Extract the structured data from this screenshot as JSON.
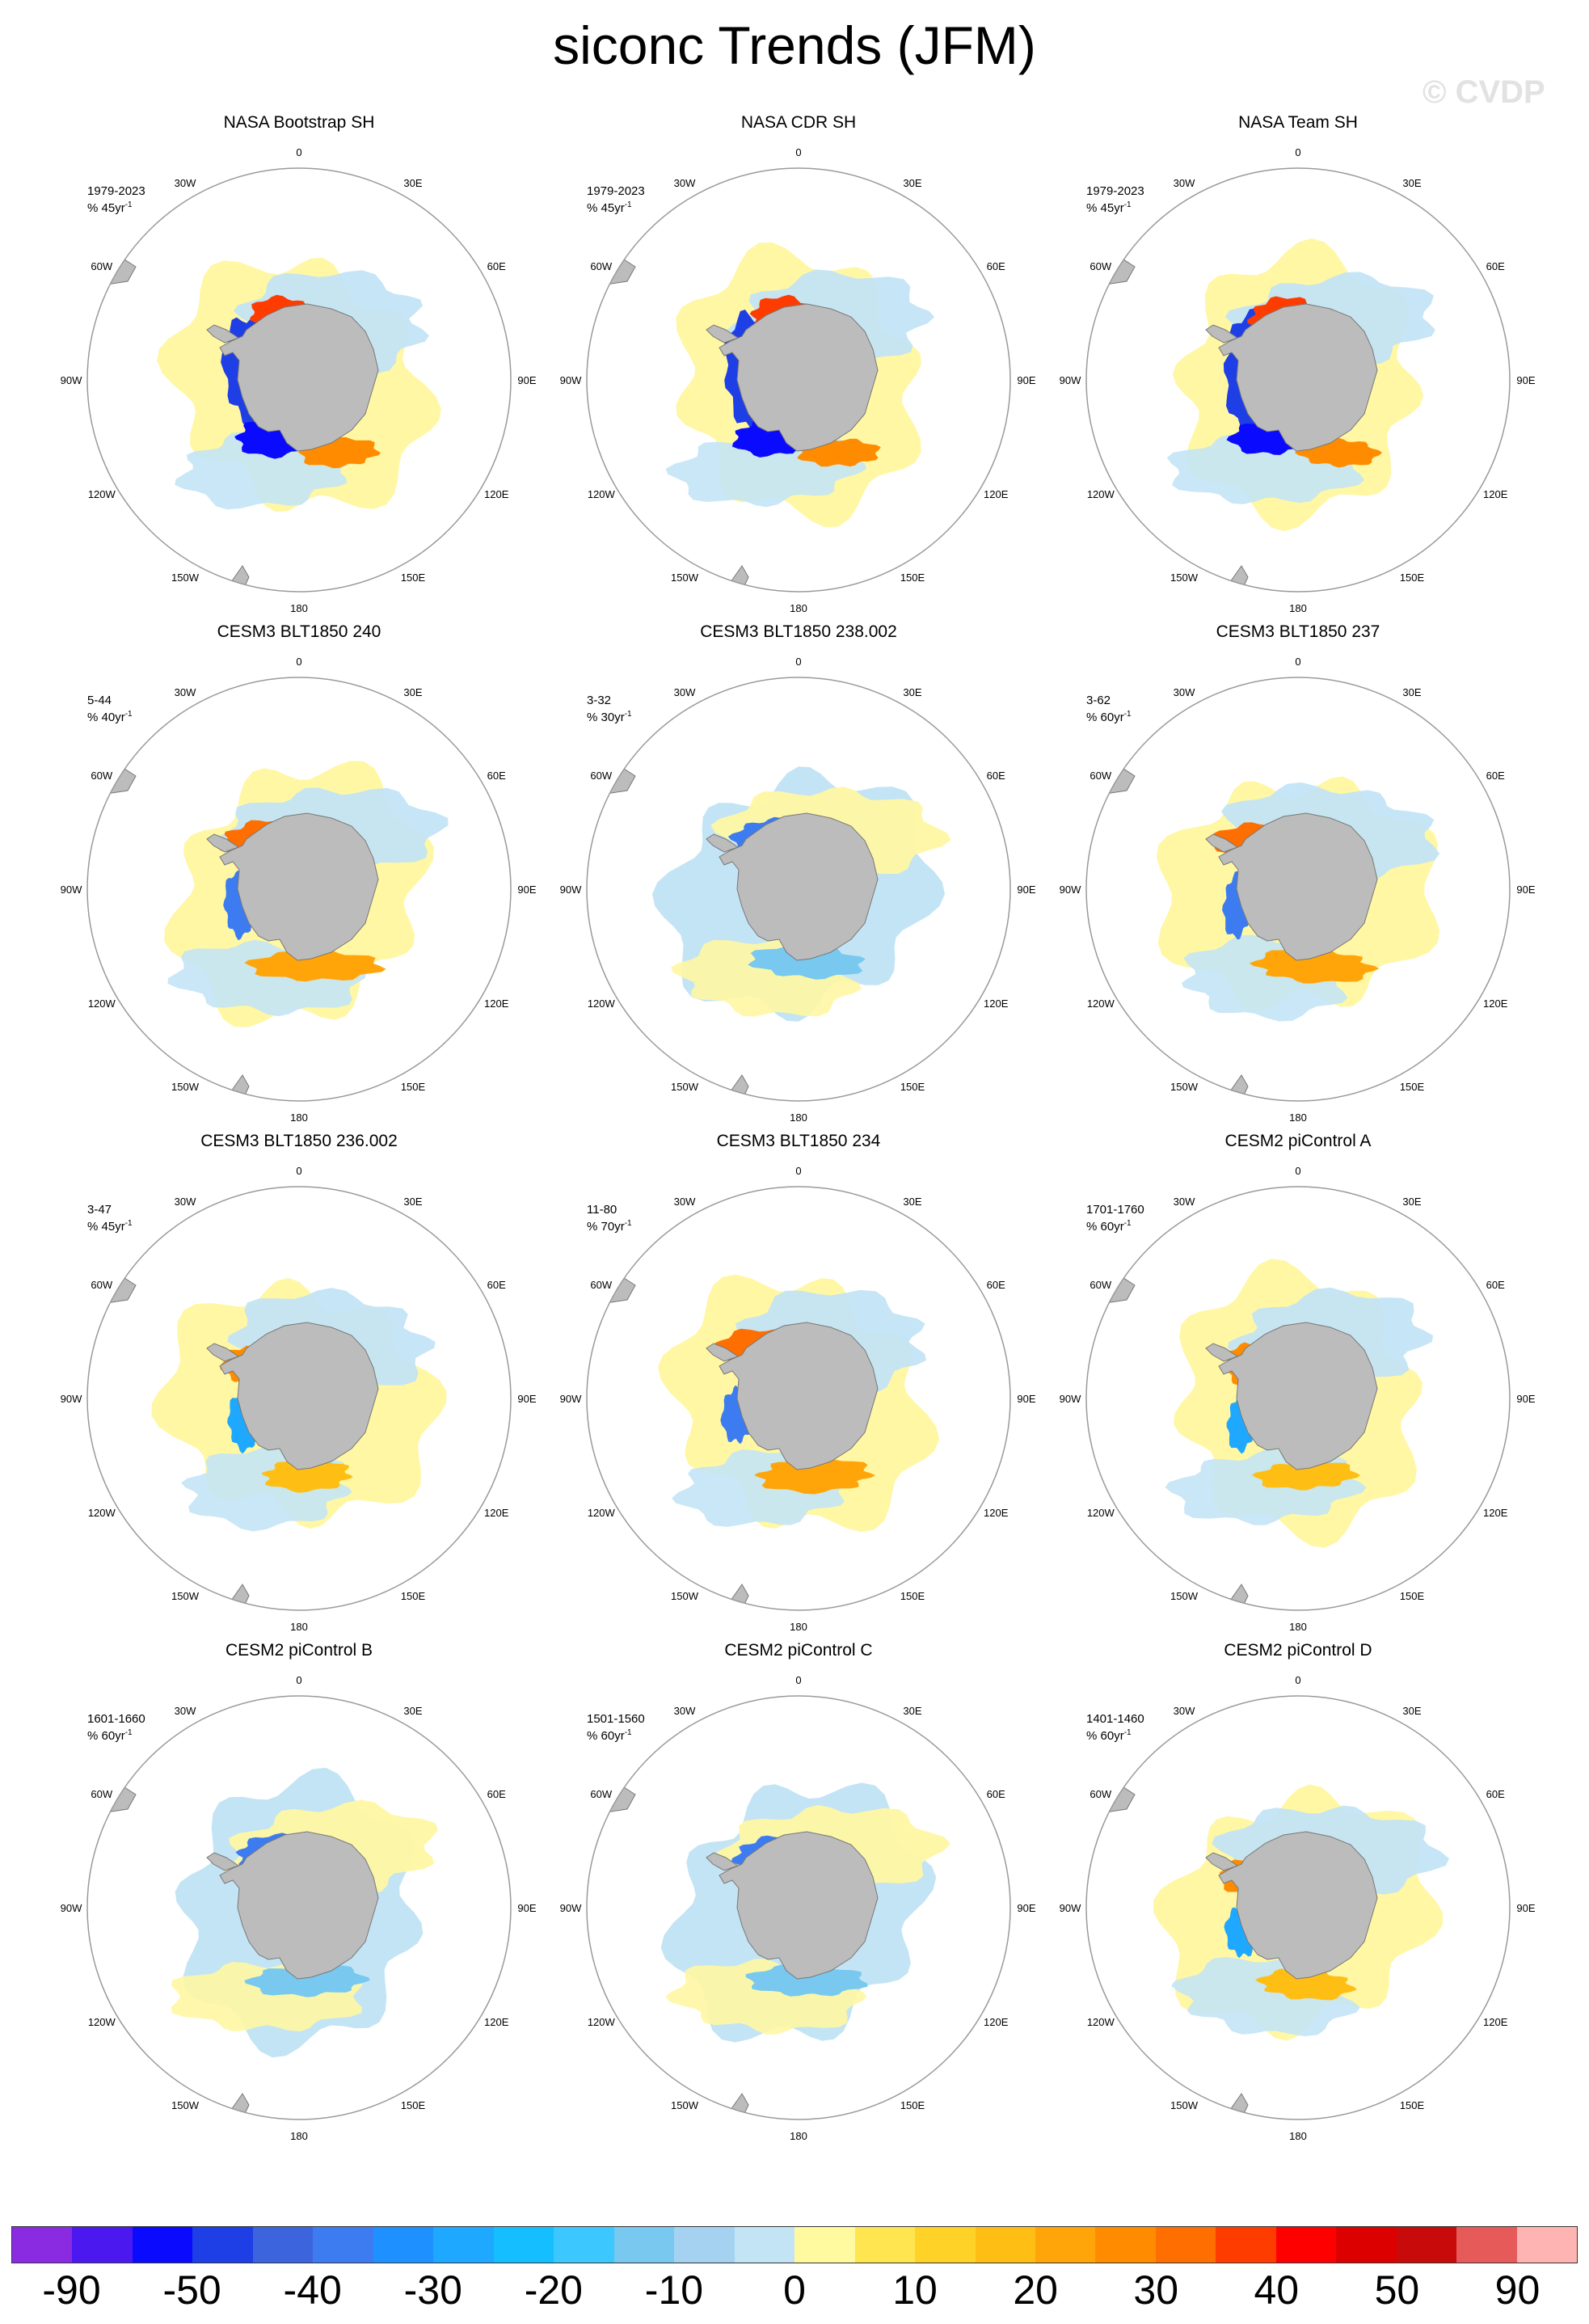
{
  "title": "siconc Trends (JFM)",
  "watermark": "© CVDP",
  "lon_labels": [
    "0",
    "30E",
    "60E",
    "90E",
    "120E",
    "150E",
    "180",
    "150W",
    "120W",
    "90W",
    "60W",
    "30W"
  ],
  "panels": [
    {
      "title": "NASA Bootstrap SH",
      "period": "1979-2023",
      "units": "% 45yr",
      "pattern": "obs"
    },
    {
      "title": "NASA CDR SH",
      "period": "1979-2023",
      "units": "% 45yr",
      "pattern": "obs"
    },
    {
      "title": "NASA Team SH",
      "period": "1979-2023",
      "units": "% 45yr",
      "pattern": "obs"
    },
    {
      "title": "CESM3 BLT1850 240",
      "period": "5-44",
      "units": "% 40yr",
      "pattern": "warm"
    },
    {
      "title": "CESM3 BLT1850 238.002",
      "period": "3-32",
      "units": "% 30yr",
      "pattern": "cool"
    },
    {
      "title": "CESM3 BLT1850 237",
      "period": "3-62",
      "units": "% 60yr",
      "pattern": "warm"
    },
    {
      "title": "CESM3 BLT1850 236.002",
      "period": "3-47",
      "units": "% 45yr",
      "pattern": "mixed"
    },
    {
      "title": "CESM3 BLT1850 234",
      "period": "11-80",
      "units": "% 70yr",
      "pattern": "warm"
    },
    {
      "title": "CESM2 piControl A",
      "period": "1701-1760",
      "units": "% 60yr",
      "pattern": "mixed"
    },
    {
      "title": "CESM2 piControl B",
      "period": "1601-1660",
      "units": "% 60yr",
      "pattern": "cool"
    },
    {
      "title": "CESM2 piControl C",
      "period": "1501-1560",
      "units": "% 60yr",
      "pattern": "cool"
    },
    {
      "title": "CESM2 piControl D",
      "period": "1401-1460",
      "units": "% 60yr",
      "pattern": "mixed"
    }
  ],
  "colorbar": {
    "colors": [
      "#8a2be2",
      "#4b19f0",
      "#0a0aff",
      "#1e3ee6",
      "#3c64dc",
      "#3c7cf0",
      "#1e90ff",
      "#1ea8ff",
      "#14beff",
      "#3cc8ff",
      "#78c8f0",
      "#a5d2f0",
      "#c3e4f5",
      "#fffaa0",
      "#ffe650",
      "#ffd228",
      "#ffbe14",
      "#ffa50a",
      "#ff8c00",
      "#ff6e00",
      "#ff3c00",
      "#ff0000",
      "#dc0000",
      "#c80a0a",
      "#e65a5a",
      "#ffb4b4"
    ],
    "labels": [
      "-90",
      "-50",
      "-40",
      "-30",
      "-20",
      "-10",
      "0",
      "10",
      "20",
      "30",
      "40",
      "50",
      "90"
    ]
  },
  "colors": {
    "land": "#bcbcbc",
    "circle": "#9a9a9a",
    "pale_yellow": "#fff7a3",
    "pale_blue": "#c3e4f5"
  }
}
